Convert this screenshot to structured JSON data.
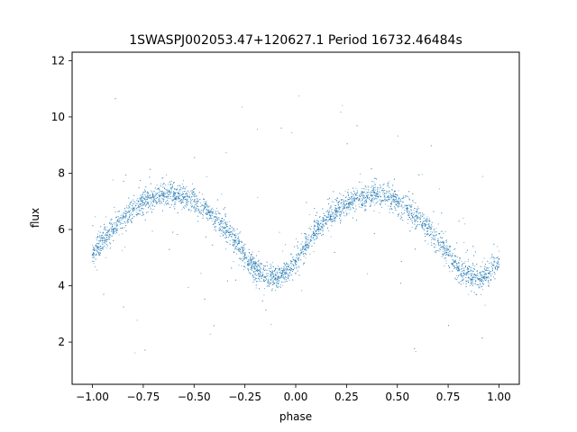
{
  "chart_data": {
    "type": "scatter",
    "title": "1SWASPJ002053.47+120627.1 Period 16732.46484s",
    "xlabel": "phase",
    "ylabel": "flux",
    "xlim": [
      -1.1,
      1.1
    ],
    "ylim": [
      0.5,
      12.3
    ],
    "x_ticks": [
      -1.0,
      -0.75,
      -0.5,
      -0.25,
      0.0,
      0.25,
      0.5,
      0.75,
      1.0
    ],
    "x_tick_labels": [
      "−1.00",
      "−0.75",
      "−0.50",
      "−0.25",
      "0.00",
      "0.25",
      "0.50",
      "0.75",
      "1.00"
    ],
    "y_ticks": [
      2,
      4,
      6,
      8,
      10,
      12
    ],
    "y_tick_labels": [
      "2",
      "4",
      "6",
      "8",
      "10",
      "12"
    ],
    "grid": false,
    "point_color": "#1f77b4",
    "series": [
      {
        "x": [
          -1.0,
          -0.95,
          -0.9,
          -0.85,
          -0.8,
          -0.75,
          -0.7,
          -0.65,
          -0.6,
          -0.55,
          -0.5,
          -0.45,
          -0.4,
          -0.35,
          -0.3,
          -0.25,
          -0.2,
          -0.15,
          -0.1,
          -0.05,
          0.0,
          0.05,
          0.1,
          0.15,
          0.2,
          0.25,
          0.3,
          0.35,
          0.4,
          0.45,
          0.5,
          0.55,
          0.6,
          0.65,
          0.7,
          0.75,
          0.8,
          0.85,
          0.9,
          0.95,
          1.0
        ],
        "y": [
          5.1,
          5.6,
          6.0,
          6.4,
          6.7,
          6.95,
          7.15,
          7.25,
          7.25,
          7.15,
          7.0,
          6.75,
          6.45,
          6.05,
          5.6,
          5.1,
          4.6,
          4.3,
          4.25,
          4.45,
          4.9,
          5.45,
          5.95,
          6.35,
          6.65,
          6.9,
          7.1,
          7.2,
          7.25,
          7.15,
          7.0,
          6.75,
          6.45,
          6.05,
          5.6,
          5.1,
          4.6,
          4.3,
          4.25,
          4.45,
          4.95
        ]
      }
    ]
  }
}
